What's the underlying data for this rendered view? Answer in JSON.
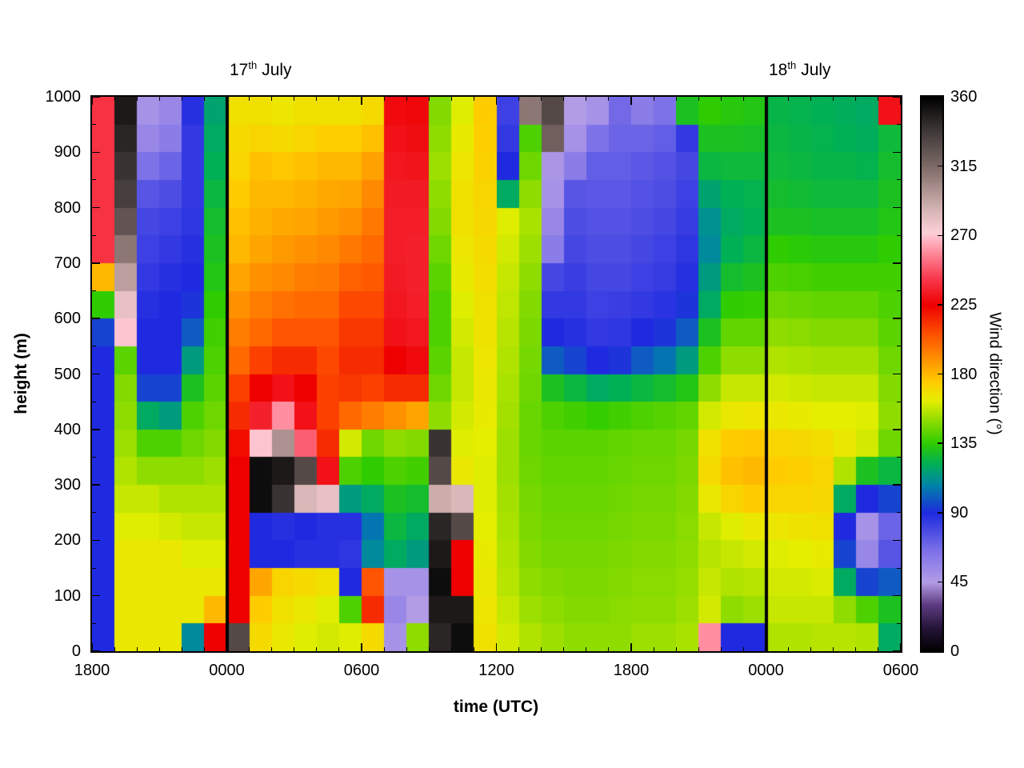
{
  "figure": {
    "background": "#ffffff"
  },
  "annotations": [
    {
      "day": "17",
      "ordinal": "th",
      "month": "July",
      "hour": 6
    },
    {
      "day": "18",
      "ordinal": "th",
      "month": "July",
      "hour": 30
    }
  ],
  "axes": {
    "x": {
      "label": "time (UTC)",
      "span_hours": 36,
      "ticks": [
        {
          "hour": 0,
          "label": "1800"
        },
        {
          "hour": 6,
          "label": "0000"
        },
        {
          "hour": 12,
          "label": "0600"
        },
        {
          "hour": 18,
          "label": "1200"
        },
        {
          "hour": 24,
          "label": "1800"
        },
        {
          "hour": 30,
          "label": "0000"
        },
        {
          "hour": 36,
          "label": "0600"
        }
      ]
    },
    "y": {
      "label": "height (m)",
      "min": 0,
      "max": 1000,
      "ticks": [
        0,
        100,
        200,
        300,
        400,
        500,
        600,
        700,
        800,
        900,
        1000
      ]
    },
    "colorbar": {
      "label": "Wind direction (°)",
      "min": 0,
      "max": 360,
      "ticks": [
        0,
        45,
        90,
        135,
        180,
        225,
        270,
        315,
        360
      ]
    }
  },
  "chart_data": {
    "type": "heatmap",
    "title": "",
    "xlabel": "time (UTC)",
    "ylabel": "height (m)",
    "value_units": "wind direction (degrees, 0-360)",
    "x_range_hours": [
      0,
      36
    ],
    "x_tick_labels": [
      "1800",
      "0000",
      "0600",
      "1200",
      "1800",
      "0000",
      "0600"
    ],
    "y_range_m": [
      0,
      1000
    ],
    "day_boundary_hours": [
      6,
      30
    ],
    "orientation": "values_degrees[time_column][height_bin]; 36 hourly columns left to right, 20 height bins of 50 m ascending from ground",
    "colormap": [
      {
        "value": 0,
        "color": "#000000"
      },
      {
        "value": 15,
        "color": "#251538"
      },
      {
        "value": 30,
        "color": "#5c3a80"
      },
      {
        "value": 45,
        "color": "#b39ce6"
      },
      {
        "value": 65,
        "color": "#7e72e8"
      },
      {
        "value": 90,
        "color": "#1f2ae0"
      },
      {
        "value": 108,
        "color": "#0084a8"
      },
      {
        "value": 122,
        "color": "#00b055"
      },
      {
        "value": 135,
        "color": "#2ecc00"
      },
      {
        "value": 150,
        "color": "#8fdc00"
      },
      {
        "value": 163,
        "color": "#e6ee00"
      },
      {
        "value": 175,
        "color": "#ffcc00"
      },
      {
        "value": 188,
        "color": "#ff9900"
      },
      {
        "value": 205,
        "color": "#ff5500"
      },
      {
        "value": 225,
        "color": "#ee0000"
      },
      {
        "value": 243,
        "color": "#f83c50"
      },
      {
        "value": 260,
        "color": "#ff8fa0"
      },
      {
        "value": 272,
        "color": "#fdd0d8"
      },
      {
        "value": 288,
        "color": "#d2b2b2"
      },
      {
        "value": 315,
        "color": "#7d6a66"
      },
      {
        "value": 338,
        "color": "#3f3838"
      },
      {
        "value": 360,
        "color": "#000000"
      }
    ],
    "values_degrees": [
      [
        90,
        90,
        90,
        90,
        90,
        90,
        90,
        90,
        90,
        90,
        90,
        95,
        135,
        180,
        240,
        240,
        240,
        240,
        240,
        240
      ],
      [
        165,
        165,
        165,
        165,
        162,
        158,
        155,
        152,
        150,
        148,
        142,
        270,
        280,
        295,
        310,
        325,
        335,
        340,
        345,
        350
      ],
      [
        165,
        165,
        165,
        165,
        162,
        158,
        150,
        140,
        120,
        95,
        90,
        90,
        88,
        85,
        82,
        80,
        75,
        65,
        55,
        50
      ],
      [
        165,
        165,
        165,
        165,
        160,
        155,
        150,
        140,
        115,
        95,
        90,
        90,
        90,
        88,
        85,
        82,
        78,
        70,
        60,
        55
      ],
      [
        110,
        165,
        165,
        162,
        158,
        155,
        150,
        145,
        140,
        130,
        115,
        100,
        92,
        90,
        88,
        86,
        85,
        85,
        85,
        88
      ],
      [
        225,
        180,
        165,
        162,
        158,
        155,
        152,
        148,
        145,
        142,
        140,
        138,
        135,
        132,
        130,
        128,
        125,
        122,
        120,
        118
      ],
      [
        330,
        225,
        225,
        225,
        225,
        225,
        225,
        222,
        215,
        210,
        200,
        195,
        190,
        185,
        180,
        178,
        175,
        172,
        170,
        168
      ],
      [
        170,
        175,
        185,
        90,
        90,
        355,
        355,
        270,
        235,
        225,
        210,
        200,
        195,
        190,
        185,
        182,
        180,
        178,
        172,
        168
      ],
      [
        165,
        168,
        172,
        90,
        88,
        340,
        350,
        300,
        260,
        230,
        215,
        205,
        198,
        192,
        188,
        184,
        180,
        176,
        170,
        166
      ],
      [
        162,
        165,
        170,
        88,
        90,
        285,
        330,
        250,
        230,
        225,
        215,
        205,
        200,
        195,
        190,
        185,
        182,
        178,
        172,
        168
      ],
      [
        160,
        162,
        168,
        88,
        88,
        280,
        230,
        215,
        210,
        210,
        208,
        205,
        200,
        196,
        192,
        188,
        184,
        180,
        174,
        168
      ],
      [
        162,
        140,
        90,
        86,
        88,
        115,
        140,
        160,
        200,
        212,
        215,
        212,
        208,
        202,
        196,
        190,
        185,
        180,
        174,
        168
      ],
      [
        170,
        215,
        205,
        110,
        105,
        120,
        135,
        145,
        195,
        210,
        215,
        212,
        208,
        204,
        200,
        196,
        192,
        186,
        178,
        170
      ],
      [
        50,
        55,
        50,
        120,
        125,
        130,
        140,
        150,
        190,
        215,
        225,
        230,
        232,
        233,
        234,
        234,
        233,
        232,
        230,
        228
      ],
      [
        150,
        45,
        50,
        115,
        120,
        128,
        138,
        148,
        185,
        215,
        228,
        232,
        234,
        235,
        235,
        234,
        233,
        231,
        229,
        227
      ],
      [
        345,
        350,
        355,
        350,
        345,
        290,
        330,
        340,
        150,
        145,
        142,
        140,
        140,
        142,
        145,
        148,
        150,
        152,
        150,
        148
      ],
      [
        355,
        350,
        225,
        225,
        330,
        285,
        165,
        162,
        160,
        158,
        158,
        160,
        162,
        164,
        166,
        168,
        168,
        166,
        164,
        162
      ],
      [
        168,
        166,
        165,
        164,
        163,
        162,
        162,
        163,
        164,
        165,
        166,
        167,
        168,
        169,
        170,
        171,
        172,
        173,
        174,
        175
      ],
      [
        160,
        158,
        156,
        155,
        154,
        153,
        152,
        152,
        153,
        154,
        155,
        156,
        157,
        158,
        160,
        162,
        120,
        90,
        85,
        82
      ],
      [
        155,
        152,
        150,
        148,
        147,
        146,
        145,
        144,
        144,
        145,
        146,
        147,
        148,
        150,
        152,
        154,
        150,
        145,
        140,
        310
      ],
      [
        152,
        150,
        148,
        146,
        145,
        144,
        143,
        142,
        140,
        130,
        100,
        90,
        85,
        80,
        60,
        55,
        50,
        48,
        320,
        330
      ],
      [
        150,
        148,
        147,
        146,
        145,
        144,
        143,
        142,
        138,
        125,
        95,
        88,
        85,
        83,
        80,
        78,
        75,
        60,
        50,
        45
      ],
      [
        150,
        148,
        147,
        146,
        145,
        144,
        143,
        142,
        136,
        120,
        90,
        85,
        82,
        80,
        78,
        76,
        74,
        72,
        65,
        50
      ],
      [
        150,
        149,
        148,
        147,
        146,
        145,
        144,
        143,
        138,
        122,
        92,
        86,
        83,
        80,
        78,
        76,
        74,
        72,
        70,
        68
      ],
      [
        152,
        150,
        149,
        148,
        147,
        146,
        145,
        144,
        140,
        125,
        100,
        90,
        85,
        82,
        80,
        78,
        76,
        74,
        70,
        60
      ],
      [
        152,
        150,
        149,
        148,
        147,
        146,
        145,
        144,
        141,
        128,
        105,
        92,
        87,
        84,
        82,
        80,
        78,
        76,
        72,
        65
      ],
      [
        154,
        152,
        151,
        150,
        149,
        148,
        147,
        146,
        143,
        132,
        115,
        100,
        92,
        88,
        86,
        84,
        82,
        80,
        85,
        130
      ],
      [
        260,
        160,
        158,
        156,
        158,
        165,
        170,
        168,
        160,
        150,
        140,
        130,
        120,
        115,
        110,
        112,
        118,
        125,
        130,
        135
      ],
      [
        90,
        150,
        155,
        158,
        162,
        172,
        178,
        175,
        165,
        158,
        150,
        143,
        135,
        128,
        122,
        120,
        122,
        126,
        130,
        133
      ],
      [
        90,
        152,
        156,
        160,
        165,
        175,
        180,
        176,
        166,
        158,
        150,
        143,
        136,
        130,
        125,
        122,
        123,
        126,
        129,
        132
      ],
      [
        155,
        158,
        160,
        162,
        166,
        172,
        175,
        172,
        165,
        160,
        155,
        150,
        145,
        140,
        135,
        130,
        128,
        126,
        125,
        124
      ],
      [
        155,
        158,
        160,
        163,
        167,
        172,
        174,
        171,
        164,
        159,
        154,
        149,
        144,
        139,
        134,
        130,
        127,
        125,
        124,
        123
      ],
      [
        156,
        158,
        161,
        164,
        168,
        171,
        172,
        169,
        163,
        158,
        153,
        148,
        143,
        138,
        133,
        129,
        126,
        124,
        123,
        122
      ],
      [
        156,
        150,
        120,
        95,
        90,
        120,
        155,
        165,
        163,
        158,
        153,
        148,
        143,
        138,
        133,
        129,
        126,
        124,
        122,
        121
      ],
      [
        155,
        140,
        95,
        55,
        50,
        90,
        130,
        160,
        162,
        158,
        153,
        148,
        143,
        138,
        133,
        129,
        126,
        123,
        121,
        120
      ],
      [
        120,
        130,
        100,
        75,
        70,
        95,
        125,
        145,
        150,
        148,
        145,
        142,
        140,
        138,
        135,
        132,
        130,
        128,
        126,
        230
      ]
    ]
  }
}
